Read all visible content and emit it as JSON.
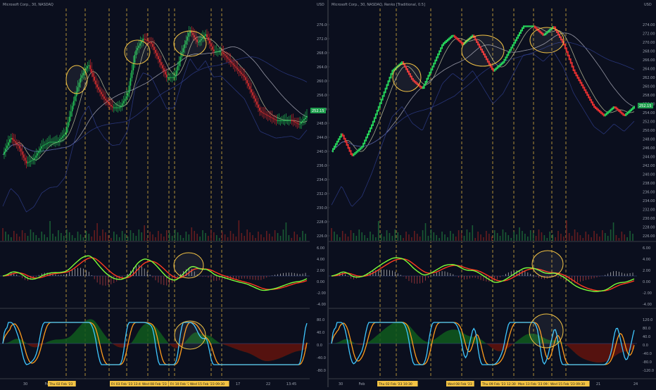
{
  "colors": {
    "background": "#0b0f1e",
    "separator": "#2a2e39",
    "axis_text": "#9aa0ad",
    "up": "#26d35a",
    "down": "#e63030",
    "vline": "#f3c344",
    "circle": "#f3c344",
    "ma_fast": "#cfd2a8",
    "ma_mid": "#2f3f8e",
    "ma_slow": "#b9b9c7",
    "macd_line": "#7cff3a",
    "macd_signal": "#ff3b1f",
    "stoch_k": "#3fc7ff",
    "stoch_d": "#ff9b1c",
    "hist_green": "#0f5a1d",
    "hist_red": "#5a0f0f",
    "price_tag": "#1f9f4e"
  },
  "left": {
    "title": "Microsoft Corp., 30, NASDAQ",
    "currency": "USD",
    "price_badge": "252.15",
    "price_ticks": [
      "276.00",
      "272.00",
      "268.00",
      "264.00",
      "260.00",
      "256.00",
      "252.00",
      "248.00",
      "244.00",
      "240.00",
      "236.00",
      "234.00",
      "232.00",
      "230.00",
      "228.00",
      "226.00"
    ],
    "macd_ticks": [
      "6.00",
      "4.00",
      "2.00",
      "0.00",
      "-2.00",
      "-4.00"
    ],
    "stoch_ticks": [
      "80.0",
      "40.0",
      "0.0",
      "-40.0",
      "-80.0"
    ],
    "time_labels": [
      "30",
      "Feb",
      "17",
      "22",
      "13:45"
    ],
    "date_tags": [
      "Thu 02 Feb '23",
      "Fri 03 Feb '23  13:45",
      "Wed 08 Feb '23",
      "Fri 10 Feb '23",
      "Wed 15 Feb '23  09:30"
    ]
  },
  "right": {
    "title": "Microsoft Corp., 30, NASDAQ, Renko [Traditional, 0.5]",
    "currency": "USD",
    "price_badge": "252.15",
    "price_ticks": [
      "274.00",
      "272.00",
      "270.00",
      "268.00",
      "266.00",
      "264.00",
      "262.00",
      "260.00",
      "258.00",
      "256.00",
      "254.00",
      "252.00",
      "250.00",
      "248.00",
      "246.00",
      "244.00",
      "242.00",
      "240.00",
      "238.00",
      "236.00",
      "234.00",
      "232.00",
      "230.00",
      "228.00",
      "226.00"
    ],
    "macd_ticks": [
      "6.00",
      "4.00",
      "2.00",
      "0.00",
      "-2.00",
      "-4.00"
    ],
    "stoch_ticks": [
      "120.0",
      "80.0",
      "40.0",
      "0.0",
      "-40.0",
      "-80.0",
      "-120.0"
    ],
    "time_labels": [
      "30",
      "Feb",
      "17",
      "21",
      "24"
    ],
    "date_tags": [
      "Thu 02 Feb '23  10:30",
      "Wed 08 Feb '23",
      "Thu 09 Feb '23  12:30",
      "Mon 13 Feb '23  09:30",
      "Wed 15 Feb '23  09:30"
    ]
  },
  "chart_data": [
    {
      "type": "line",
      "title": "Microsoft Corp., 30, NASDAQ",
      "ylabel": "USD",
      "ylim": [
        224,
        278
      ],
      "series": [
        {
          "name": "",
          "values": [
            244,
            248,
            246,
            242,
            243,
            246,
            247,
            247,
            249,
            256,
            262,
            265,
            260,
            257,
            255,
            255,
            258,
            268,
            271,
            270,
            266,
            262,
            262,
            268,
            273,
            270,
            272,
            268,
            268,
            266,
            264,
            262,
            258,
            254,
            253,
            252,
            252,
            252,
            251,
            253
          ]
        }
      ]
    },
    {
      "type": "line",
      "title": "Microsoft Corp., 30, NASDAQ, Renko [Traditional, 0.5]",
      "ylabel": "USD",
      "ylim": [
        224,
        276
      ],
      "series": [
        {
          "name": "",
          "values": [
            244,
            248,
            243,
            245,
            250,
            256,
            262,
            264,
            260,
            258,
            263,
            268,
            270,
            268,
            270,
            266,
            262,
            264,
            268,
            272,
            272,
            270,
            272,
            268,
            262,
            258,
            254,
            252,
            254,
            252,
            254
          ]
        }
      ]
    }
  ]
}
